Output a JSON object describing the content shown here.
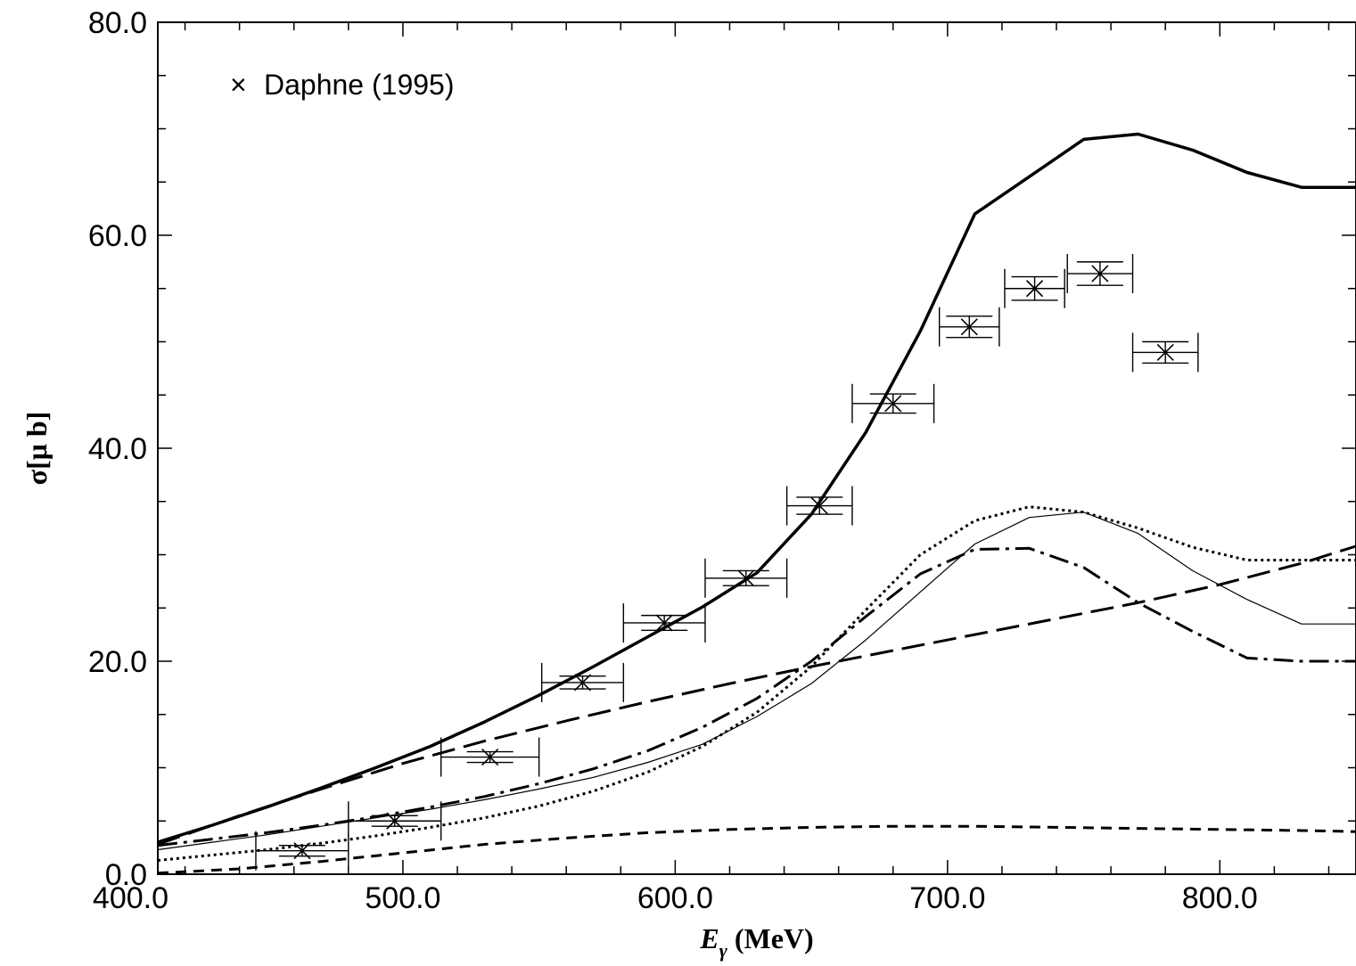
{
  "chart_data": {
    "type": "line",
    "title": "",
    "xlabel_main": "E",
    "xlabel_sub": "γ",
    "xlabel_unit": " (MeV)",
    "ylabel": "σ[μ b]",
    "xlim": [
      410,
      850
    ],
    "ylim": [
      0,
      80
    ],
    "xticks": [
      {
        "value": 400,
        "label": "400.0"
      },
      {
        "value": 500,
        "label": "500.0"
      },
      {
        "value": 600,
        "label": "600.0"
      },
      {
        "value": 700,
        "label": "700.0"
      },
      {
        "value": 800,
        "label": "800.0"
      }
    ],
    "yticks": [
      {
        "value": 0,
        "label": "0.0"
      },
      {
        "value": 20,
        "label": "20.0"
      },
      {
        "value": 40,
        "label": "40.0"
      },
      {
        "value": 60,
        "label": "60.0"
      },
      {
        "value": 80,
        "label": "80.0"
      }
    ],
    "legend": {
      "position": "top-left",
      "marker": "×",
      "label": "Daphne (1995)"
    },
    "data_points": [
      {
        "x": 463,
        "y": 2.2,
        "xerr": 17,
        "yerr": 0.5
      },
      {
        "x": 497,
        "y": 5.0,
        "xerr": 17,
        "yerr": 0.5
      },
      {
        "x": 532,
        "y": 11.0,
        "xerr": 18,
        "yerr": 0.5
      },
      {
        "x": 566,
        "y": 18.0,
        "xerr": 15,
        "yerr": 0.6
      },
      {
        "x": 596,
        "y": 23.6,
        "xerr": 15,
        "yerr": 0.7
      },
      {
        "x": 626,
        "y": 27.8,
        "xerr": 15,
        "yerr": 0.7
      },
      {
        "x": 653,
        "y": 34.6,
        "xerr": 12,
        "yerr": 0.8
      },
      {
        "x": 680,
        "y": 44.2,
        "xerr": 15,
        "yerr": 0.9
      },
      {
        "x": 708,
        "y": 51.4,
        "xerr": 11,
        "yerr": 1.0
      },
      {
        "x": 732,
        "y": 55.0,
        "xerr": 11,
        "yerr": 1.1
      },
      {
        "x": 756,
        "y": 56.4,
        "xerr": 12,
        "yerr": 1.1
      },
      {
        "x": 780,
        "y": 49.0,
        "xerr": 12,
        "yerr": 1.0
      }
    ],
    "series": [
      {
        "style": "solid-thick",
        "x": [
          410,
          430,
          450,
          470,
          490,
          510,
          530,
          550,
          570,
          590,
          610,
          630,
          650,
          670,
          690,
          710,
          730,
          750,
          770,
          790,
          810,
          830,
          850
        ],
        "y": [
          3.0,
          4.6,
          6.3,
          8.1,
          10.0,
          12.0,
          14.3,
          16.8,
          19.5,
          22.3,
          25.1,
          28.3,
          33.8,
          41.5,
          51.0,
          62.0,
          65.5,
          69.0,
          69.5,
          68.0,
          65.9,
          64.5,
          64.5
        ]
      },
      {
        "style": "solid-thin",
        "x": [
          410,
          430,
          450,
          470,
          490,
          510,
          530,
          550,
          570,
          590,
          610,
          630,
          650,
          670,
          690,
          710,
          730,
          750,
          770,
          790,
          810,
          830,
          850
        ],
        "y": [
          2.3,
          3.0,
          3.7,
          4.5,
          5.3,
          6.1,
          7.0,
          8.0,
          9.1,
          10.5,
          12.2,
          14.8,
          17.9,
          22.0,
          26.5,
          31.0,
          33.5,
          34.0,
          32.0,
          28.5,
          25.8,
          23.5,
          23.5
        ]
      },
      {
        "style": "dotted",
        "x": [
          410,
          430,
          450,
          470,
          490,
          510,
          530,
          550,
          570,
          590,
          610,
          630,
          650,
          670,
          690,
          710,
          730,
          750,
          770,
          790,
          810,
          830,
          850
        ],
        "y": [
          1.3,
          1.8,
          2.3,
          2.9,
          3.6,
          4.4,
          5.3,
          6.4,
          7.8,
          9.6,
          12.0,
          15.2,
          19.5,
          24.8,
          30.0,
          33.2,
          34.5,
          34.0,
          32.5,
          30.7,
          29.5,
          29.5,
          29.5
        ]
      },
      {
        "style": "dash-dot",
        "x": [
          410,
          430,
          450,
          470,
          490,
          510,
          530,
          550,
          570,
          590,
          610,
          630,
          650,
          670,
          690,
          710,
          730,
          750,
          770,
          790,
          810,
          830,
          850
        ],
        "y": [
          2.7,
          3.3,
          3.9,
          4.6,
          5.4,
          6.3,
          7.3,
          8.5,
          9.9,
          11.6,
          13.8,
          16.5,
          20.0,
          24.2,
          28.2,
          30.5,
          30.6,
          28.8,
          25.5,
          22.8,
          20.3,
          20.0,
          20.0
        ]
      },
      {
        "style": "long-dash",
        "x": [
          410,
          440,
          470,
          500,
          530,
          560,
          590,
          620,
          650,
          680,
          710,
          740,
          770,
          800,
          830,
          850
        ],
        "y": [
          2.8,
          5.5,
          8.0,
          10.4,
          12.5,
          14.4,
          16.2,
          17.9,
          19.5,
          21.0,
          22.5,
          24.0,
          25.5,
          27.2,
          29.2,
          30.8
        ]
      },
      {
        "style": "short-dash",
        "x": [
          410,
          440,
          470,
          500,
          530,
          560,
          590,
          620,
          650,
          680,
          710,
          740,
          770,
          800,
          830,
          850
        ],
        "y": [
          0.1,
          0.5,
          1.2,
          2.0,
          2.8,
          3.4,
          3.9,
          4.2,
          4.4,
          4.5,
          4.5,
          4.4,
          4.3,
          4.2,
          4.1,
          4.0
        ]
      }
    ]
  }
}
